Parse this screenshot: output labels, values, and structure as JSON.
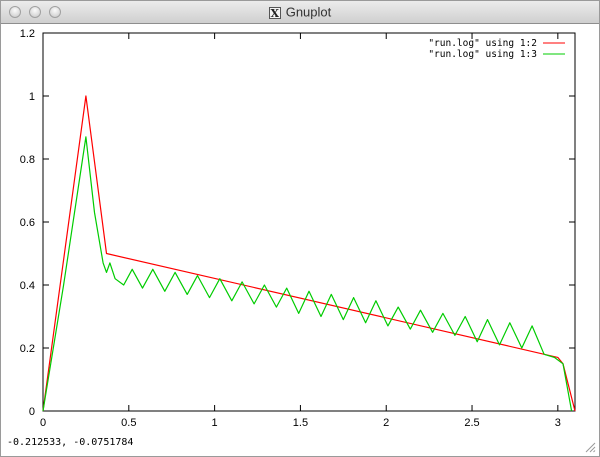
{
  "window": {
    "title": "Gnuplot",
    "title_icon": "x11-icon",
    "title_icon_glyph": "X"
  },
  "status": {
    "coordinates": "-0.212533, -0.0751784"
  },
  "colors": {
    "series1": "#ff0000",
    "series2": "#00cc00",
    "frame": "#000000"
  },
  "chart_data": {
    "type": "line",
    "xlim": [
      0,
      3.1
    ],
    "ylim": [
      0,
      1.2
    ],
    "xticks": [
      0,
      0.5,
      1,
      1.5,
      2,
      2.5,
      3
    ],
    "xtick_labels": [
      "0",
      "0.5",
      "1",
      "1.5",
      "2",
      "2.5",
      "3"
    ],
    "yticks": [
      0,
      0.2,
      0.4,
      0.6,
      0.8,
      1,
      1.2
    ],
    "ytick_labels": [
      "0",
      "0.2",
      "0.4",
      "0.6",
      "0.8",
      "1",
      "1.2"
    ],
    "legend_position": "top-right",
    "series": [
      {
        "name": "\"run.log\" using 1:2",
        "color": "#ff0000",
        "x": [
          0,
          0.25,
          0.37,
          3.0,
          3.03,
          3.1
        ],
        "y": [
          0,
          1.0,
          0.5,
          0.17,
          0.15,
          0
        ]
      },
      {
        "name": "\"run.log\" using 1:3",
        "color": "#00cc00",
        "x": [
          0,
          0.12,
          0.25,
          0.3,
          0.35,
          0.37,
          0.39,
          0.42,
          0.47,
          0.52,
          0.58,
          0.64,
          0.71,
          0.77,
          0.84,
          0.9,
          0.97,
          1.03,
          1.1,
          1.16,
          1.23,
          1.29,
          1.36,
          1.42,
          1.49,
          1.55,
          1.62,
          1.68,
          1.75,
          1.81,
          1.88,
          1.94,
          2.01,
          2.07,
          2.14,
          2.2,
          2.27,
          2.33,
          2.4,
          2.46,
          2.53,
          2.59,
          2.66,
          2.72,
          2.79,
          2.85,
          2.92,
          2.98,
          3.03,
          3.08
        ],
        "y": [
          0,
          0.4,
          0.87,
          0.63,
          0.47,
          0.44,
          0.47,
          0.42,
          0.4,
          0.45,
          0.39,
          0.45,
          0.38,
          0.44,
          0.37,
          0.43,
          0.36,
          0.42,
          0.35,
          0.41,
          0.34,
          0.4,
          0.33,
          0.39,
          0.31,
          0.38,
          0.3,
          0.37,
          0.29,
          0.36,
          0.28,
          0.35,
          0.27,
          0.33,
          0.26,
          0.32,
          0.25,
          0.31,
          0.24,
          0.3,
          0.22,
          0.29,
          0.21,
          0.28,
          0.2,
          0.27,
          0.18,
          0.17,
          0.15,
          0
        ]
      }
    ]
  }
}
